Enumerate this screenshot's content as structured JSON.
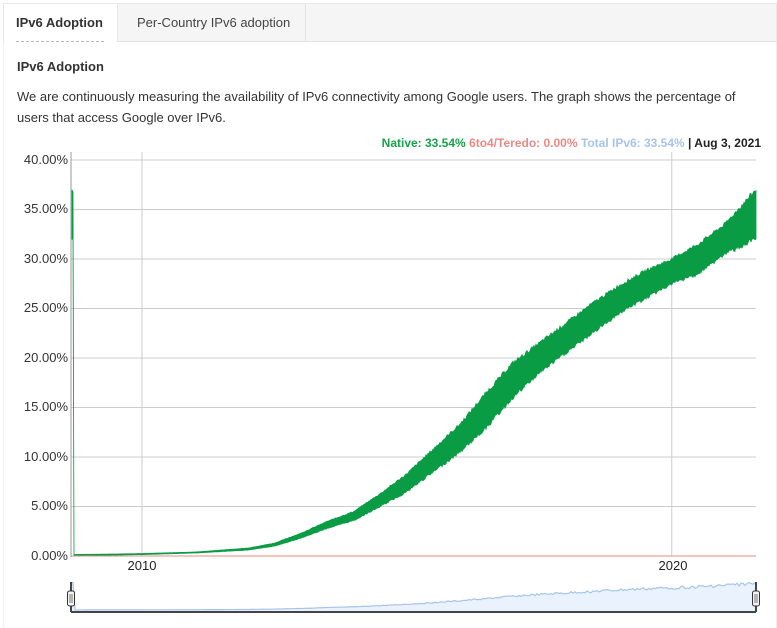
{
  "tabs": [
    {
      "label": "IPv6 Adoption",
      "active": true
    },
    {
      "label": "Per-Country IPv6 adoption",
      "active": false
    }
  ],
  "section": {
    "title": "IPv6 Adoption",
    "description": "We are continuously measuring the availability of IPv6 connectivity among Google users. The graph shows the percentage of users that access Google over IPv6."
  },
  "legend": {
    "native": "Native: 33.54%",
    "teredo": "6to4/Teredo: 0.00%",
    "total": "Total IPv6: 33.54%",
    "date": "| Aug 3, 2021"
  },
  "colors": {
    "native": "#0a9b45",
    "teredo": "#e88a86",
    "total": "#a8c4ec",
    "grid": "#cccccc"
  },
  "range_selector": {
    "left_handle": "range-start",
    "right_handle": "range-end"
  },
  "chart_data": {
    "type": "area",
    "title": "IPv6 Adoption",
    "xlabel": "",
    "ylabel": "",
    "ylim": [
      0,
      40
    ],
    "xlim": [
      2008.66,
      2021.59
    ],
    "y_ticks": [
      "0.00%",
      "5.00%",
      "10.00%",
      "15.00%",
      "20.00%",
      "25.00%",
      "30.00%",
      "35.00%",
      "40.00%"
    ],
    "x_ticks": [
      "2010",
      "2020"
    ],
    "grid": true,
    "legend_position": "top-right",
    "series": [
      {
        "name": "Native",
        "color": "#0a9b45",
        "x": [
          2008.7,
          2009.5,
          2010.0,
          2011.0,
          2012.0,
          2012.5,
          2013.0,
          2013.5,
          2014.0,
          2014.5,
          2015.0,
          2015.5,
          2016.0,
          2016.5,
          2017.0,
          2017.5,
          2018.0,
          2018.5,
          2019.0,
          2019.5,
          2020.0,
          2020.5,
          2021.0,
          2021.59
        ],
        "low": [
          0.05,
          0.1,
          0.15,
          0.3,
          0.6,
          1.0,
          1.8,
          2.8,
          3.6,
          5.0,
          6.5,
          8.5,
          10.5,
          13.0,
          16.0,
          18.5,
          20.5,
          22.5,
          24.5,
          26.0,
          27.5,
          28.5,
          30.5,
          32.0
        ],
        "high": [
          0.15,
          0.2,
          0.25,
          0.4,
          0.8,
          1.3,
          2.3,
          3.5,
          4.5,
          6.3,
          8.3,
          10.8,
          13.3,
          16.5,
          19.5,
          21.5,
          23.5,
          25.5,
          27.3,
          28.8,
          30.0,
          31.5,
          33.5,
          37.0
        ]
      },
      {
        "name": "6to4/Teredo",
        "color": "#e88a86",
        "x": [
          2008.7,
          2021.59
        ],
        "values": [
          0.0,
          0.0
        ]
      },
      {
        "name": "Total IPv6",
        "color": "#a8c4ec",
        "x": [
          2008.7,
          2021.59
        ],
        "values": [
          0.1,
          33.54
        ]
      }
    ],
    "current": {
      "date": "Aug 3, 2021",
      "native": 33.54,
      "teredo": 0.0,
      "total": 33.54
    }
  }
}
